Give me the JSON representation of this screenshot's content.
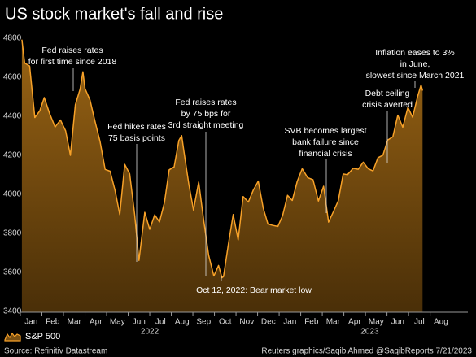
{
  "chart_data": {
    "type": "area",
    "title": "US stock market's fall and rise",
    "x": [
      0.07,
      0.2,
      0.43,
      0.67,
      0.9,
      1.11,
      1.36,
      1.61,
      1.86,
      2.1,
      2.32,
      2.55,
      2.77,
      2.9,
      3.0,
      3.23,
      3.43,
      3.7,
      3.93,
      4.16,
      4.39,
      4.61,
      4.84,
      5.07,
      5.3,
      5.5,
      5.77,
      6.0,
      6.23,
      6.45,
      6.68,
      6.9,
      7.13,
      7.35,
      7.48,
      7.58,
      7.81,
      8.03,
      8.27,
      8.5,
      8.73,
      8.97,
      9.19,
      9.35,
      9.42,
      9.65,
      9.87,
      10.1,
      10.33,
      10.57,
      10.8,
      11.03,
      11.26,
      11.48,
      11.71,
      11.94,
      12.16,
      12.39,
      12.61,
      12.84,
      13.07,
      13.32,
      13.57,
      13.82,
      14.06,
      14.29,
      14.52,
      14.74,
      14.97,
      15.17,
      15.43,
      15.67,
      15.9,
      16.13,
      16.35,
      16.58,
      16.81,
      17.03,
      17.27,
      17.5,
      17.73,
      17.97,
      18.19,
      18.42,
      18.58,
      18.65
    ],
    "series": [
      {
        "name": "S&P 500",
        "color": "#f7a128",
        "values": [
          4797,
          4677,
          4662,
          4398,
          4432,
          4500,
          4418,
          4349,
          4385,
          4329,
          4204,
          4463,
          4543,
          4632,
          4546,
          4488,
          4393,
          4272,
          4132,
          4123,
          4024,
          3901,
          4158,
          4109,
          3901,
          3666,
          3912,
          3825,
          3899,
          3863,
          3962,
          4130,
          4145,
          4280,
          4305,
          4228,
          4058,
          3924,
          4067,
          3873,
          3693,
          3586,
          3640,
          3577,
          3583,
          3752,
          3901,
          3771,
          3993,
          3965,
          4026,
          4072,
          3934,
          3852,
          3845,
          3840,
          3895,
          3999,
          3973,
          4071,
          4136,
          4090,
          4079,
          3970,
          4046,
          3862,
          3917,
          3971,
          4109,
          4105,
          4138,
          4133,
          4169,
          4136,
          4124,
          4192,
          4205,
          4282,
          4299,
          4410,
          4348,
          4450,
          4399,
          4505,
          4565,
          4536
        ]
      }
    ],
    "xlim": [
      0,
      20.75
    ],
    "ylim": [
      3400,
      4800
    ],
    "yticks": [
      3400,
      3600,
      3800,
      4000,
      4200,
      4400,
      4600,
      4800
    ],
    "xticks": [
      {
        "value": 0.5,
        "label": "Jan"
      },
      {
        "value": 1.5,
        "label": "Feb"
      },
      {
        "value": 2.5,
        "label": "Mar"
      },
      {
        "value": 3.5,
        "label": "Apr"
      },
      {
        "value": 4.5,
        "label": "May"
      },
      {
        "value": 5.5,
        "label": "Jun"
      },
      {
        "value": 6.5,
        "label": "Jul"
      },
      {
        "value": 7.5,
        "label": "Aug"
      },
      {
        "value": 8.5,
        "label": "Sep"
      },
      {
        "value": 9.5,
        "label": "Oct"
      },
      {
        "value": 10.5,
        "label": "Nov"
      },
      {
        "value": 11.5,
        "label": "Dec"
      },
      {
        "value": 12.5,
        "label": "Jan"
      },
      {
        "value": 13.5,
        "label": "Feb"
      },
      {
        "value": 14.5,
        "label": "Mar"
      },
      {
        "value": 15.5,
        "label": "Apr"
      },
      {
        "value": 16.5,
        "label": "May"
      },
      {
        "value": 17.5,
        "label": "Jun"
      },
      {
        "value": 18.5,
        "label": "Jul"
      },
      {
        "value": 19.5,
        "label": "Aug"
      }
    ],
    "year_ticks": [
      {
        "value": 6.0,
        "label": "2022"
      },
      {
        "value": 16.2,
        "label": "2023"
      }
    ],
    "annotations": [
      {
        "lines": [
          "Fed raises rates",
          "for first time since 2018"
        ]
      },
      {
        "lines": [
          "Fed hikes rates",
          "75 basis points"
        ]
      },
      {
        "lines": [
          "Fed raises rates",
          "by 75 bps for",
          "3rd straight meeting"
        ]
      },
      {
        "lines": [
          "Oct 12, 2022: Bear market low"
        ]
      },
      {
        "lines": [
          "SVB becomes largest",
          "bank failure since",
          "financial crisis"
        ]
      },
      {
        "lines": [
          "Debt ceiling",
          "crisis averted"
        ]
      },
      {
        "lines": [
          "Inflation eases to 3%",
          "in June,",
          "slowest since March 2021"
        ]
      }
    ],
    "source": "Source: Refinitiv Datastream",
    "credit": "Reuters graphics/Saqib Ahmed @SaqibReports 7/21/2023"
  }
}
